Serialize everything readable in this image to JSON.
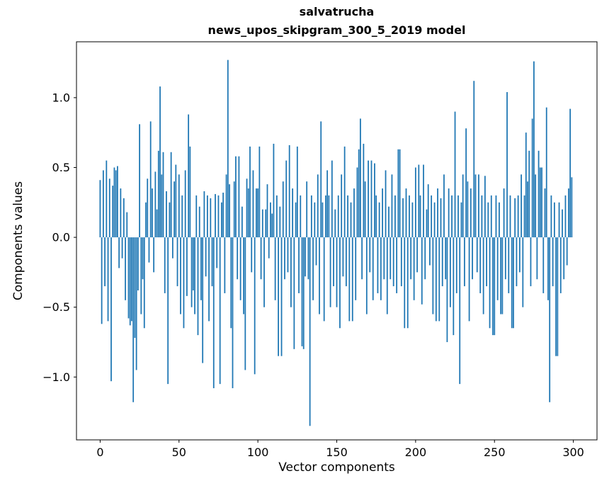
{
  "chart_data": {
    "type": "bar",
    "title": "salvatrucha",
    "subtitle": "news_upos_skipgram_300_5_2019 model",
    "xlabel": "Vector components",
    "ylabel": "Components values",
    "bar_color": "#1f77b4",
    "axis_color": "#000000",
    "background_color": "#ffffff",
    "grid": false,
    "legend": false,
    "xlim": [
      -15,
      315
    ],
    "ylim": [
      -1.45,
      1.4
    ],
    "xtick_values": [
      0,
      50,
      100,
      150,
      200,
      250,
      300
    ],
    "xtick_labels": [
      "0",
      "50",
      "100",
      "150",
      "200",
      "250",
      "300"
    ],
    "ytick_values": [
      -1.0,
      -0.5,
      0.0,
      0.5,
      1.0
    ],
    "ytick_labels": [
      "−1.0",
      "−0.5",
      "0.0",
      "0.5",
      "1.0"
    ],
    "n_components": 300,
    "values": [
      0.41,
      -0.62,
      0.48,
      -0.35,
      0.55,
      -0.6,
      0.42,
      -1.03,
      0.37,
      0.5,
      0.48,
      0.51,
      -0.22,
      0.35,
      -0.15,
      0.28,
      -0.45,
      0.18,
      -0.58,
      -0.63,
      -0.6,
      -1.18,
      -0.72,
      -0.95,
      -0.38,
      0.81,
      -0.55,
      -0.3,
      -0.65,
      0.25,
      0.42,
      -0.18,
      0.83,
      0.35,
      -0.25,
      0.47,
      0.2,
      0.62,
      1.08,
      0.45,
      0.61,
      -0.4,
      0.33,
      -1.05,
      0.25,
      0.61,
      -0.15,
      0.4,
      0.52,
      -0.35,
      0.45,
      -0.55,
      0.3,
      -0.65,
      0.48,
      -0.42,
      0.88,
      0.65,
      -0.5,
      -0.38,
      -0.55,
      0.3,
      -0.7,
      0.22,
      -0.45,
      -0.9,
      0.33,
      -0.28,
      0.3,
      -0.6,
      0.28,
      -0.35,
      -1.08,
      0.31,
      -0.22,
      0.3,
      -1.05,
      0.25,
      0.32,
      -0.4,
      0.45,
      1.27,
      0.38,
      -0.65,
      -1.08,
      0.4,
      0.58,
      -0.3,
      0.58,
      -0.45,
      0.22,
      -0.55,
      -0.95,
      0.42,
      0.35,
      0.65,
      -0.25,
      0.48,
      -0.98,
      0.35,
      0.35,
      0.65,
      -0.3,
      0.2,
      -0.5,
      0.2,
      0.38,
      -0.15,
      0.25,
      0.17,
      0.67,
      -0.45,
      0.3,
      -0.85,
      0.22,
      -0.85,
      0.4,
      -0.3,
      0.55,
      -0.25,
      0.66,
      -0.5,
      0.35,
      -0.8,
      0.25,
      0.65,
      -0.4,
      0.3,
      -0.78,
      -0.8,
      -0.28,
      0.4,
      -0.3,
      -1.35,
      0.3,
      -0.45,
      0.25,
      -0.2,
      0.45,
      -0.55,
      0.83,
      0.25,
      -0.6,
      0.3,
      0.48,
      0.3,
      -0.5,
      0.55,
      -0.35,
      0.2,
      -0.5,
      0.3,
      -0.65,
      0.45,
      -0.28,
      0.65,
      -0.35,
      0.3,
      -0.6,
      0.25,
      -0.6,
      0.35,
      -0.45,
      0.5,
      0.63,
      0.85,
      -0.3,
      0.67,
      0.4,
      -0.55,
      0.55,
      -0.25,
      0.55,
      -0.45,
      0.53,
      0.3,
      -0.4,
      0.25,
      -0.45,
      0.35,
      -0.3,
      0.48,
      -0.55,
      0.22,
      -0.3,
      0.45,
      -0.35,
      0.3,
      -0.4,
      0.63,
      0.63,
      -0.35,
      0.28,
      -0.65,
      0.35,
      -0.65,
      0.3,
      -0.3,
      0.25,
      -0.45,
      0.5,
      -0.25,
      0.52,
      0.3,
      -0.48,
      0.52,
      -0.3,
      0.2,
      0.38,
      -0.2,
      0.3,
      -0.55,
      0.25,
      -0.6,
      0.35,
      -0.6,
      0.28,
      -0.35,
      0.45,
      -0.3,
      -0.75,
      0.35,
      -0.5,
      0.3,
      -0.7,
      0.9,
      -0.4,
      0.3,
      -1.05,
      0.25,
      0.45,
      -0.35,
      0.78,
      0.4,
      -0.6,
      0.35,
      -0.3,
      1.12,
      0.45,
      -0.25,
      0.45,
      -0.4,
      0.3,
      -0.55,
      0.44,
      -0.35,
      0.25,
      -0.65,
      0.3,
      -0.7,
      -0.7,
      0.3,
      -0.45,
      0.25,
      -0.55,
      -0.55,
      0.35,
      -0.3,
      1.04,
      -0.4,
      0.3,
      -0.65,
      -0.65,
      0.28,
      -0.35,
      0.3,
      -0.25,
      0.45,
      -0.5,
      0.3,
      0.75,
      0.4,
      0.62,
      -0.35,
      0.85,
      1.26,
      0.45,
      -0.3,
      0.62,
      0.5,
      0.5,
      -0.4,
      0.35,
      0.93,
      -0.45,
      -1.18,
      0.3,
      -0.35,
      0.25,
      -0.85,
      -0.85,
      0.25,
      -0.4,
      0.2,
      -0.3,
      0.3,
      -0.2,
      0.35,
      0.92,
      0.43
    ]
  }
}
